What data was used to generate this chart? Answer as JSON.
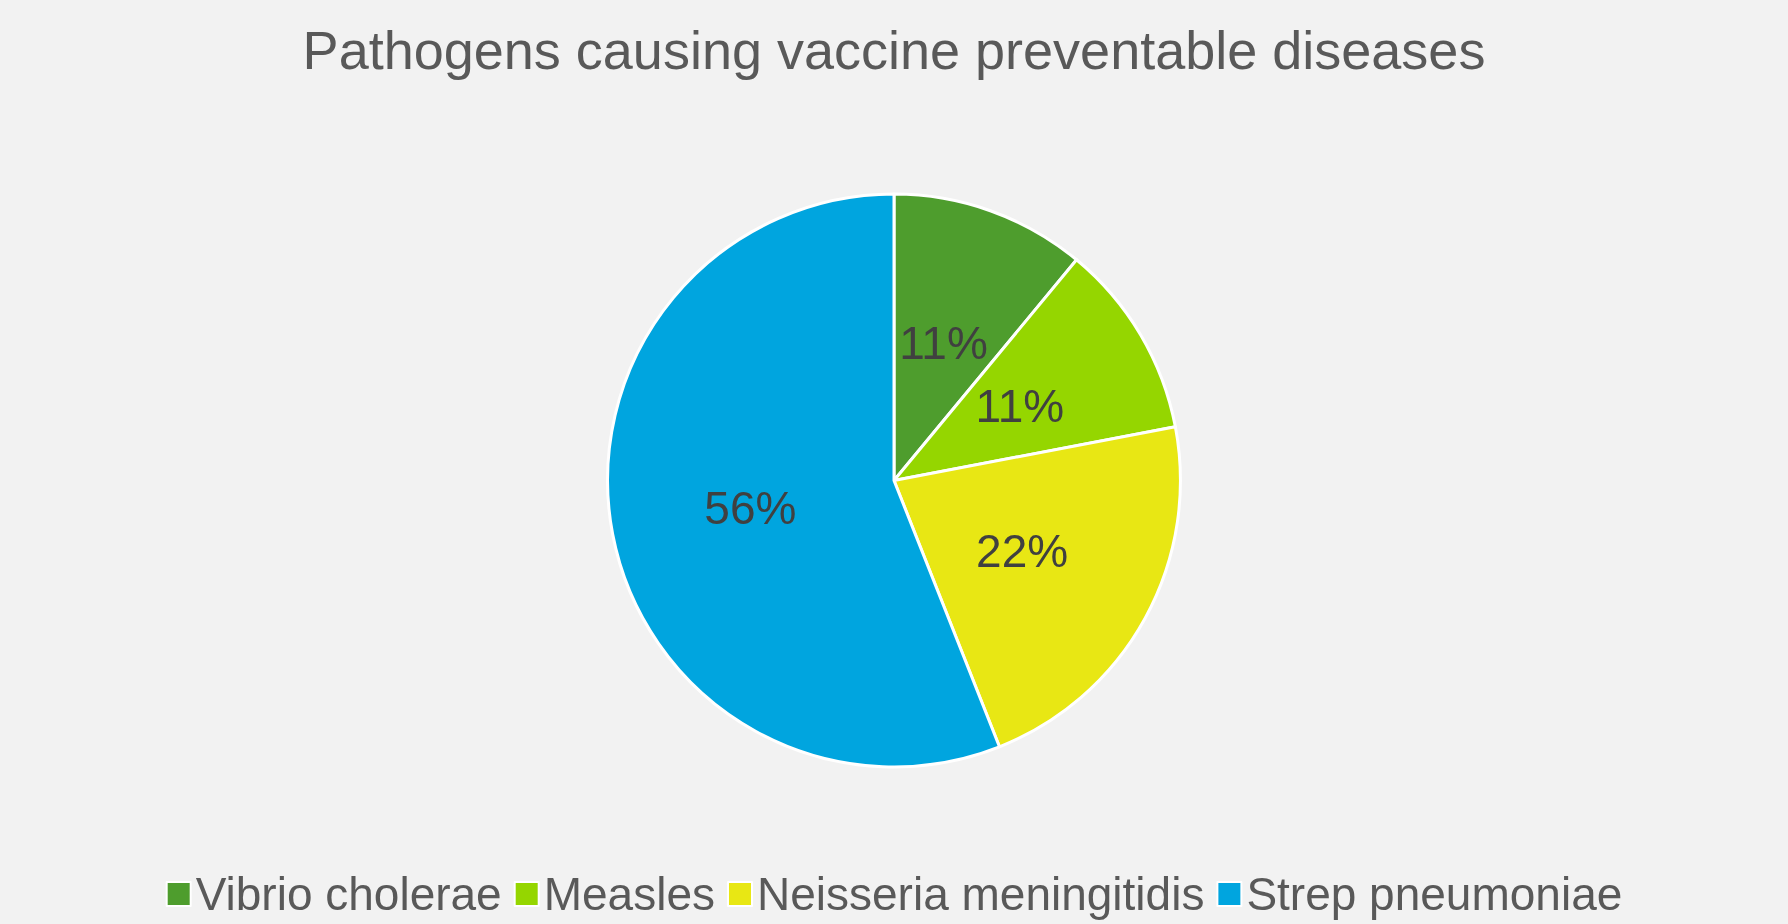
{
  "chart_data": {
    "type": "pie",
    "title": "Pathogens causing vaccine preventable diseases",
    "categories": [
      "Vibrio cholerae",
      "Measles",
      "Neisseria meningitidis",
      "Strep pneumoniae"
    ],
    "values": [
      11,
      11,
      22,
      56
    ],
    "colors": [
      "#4e9d2d",
      "#95d600",
      "#e8e714",
      "#00a5df"
    ],
    "value_labels": [
      "11%",
      "11%",
      "22%",
      "56%"
    ],
    "legend": "bottom"
  }
}
